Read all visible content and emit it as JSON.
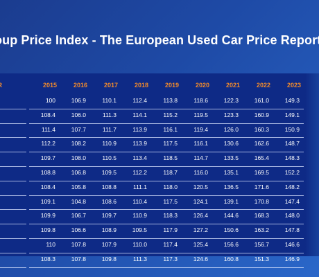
{
  "title": "oup Price Index - The European Used Car Price Report",
  "table": {
    "first_header_fragment": "AR",
    "years": [
      "2015",
      "2016",
      "2017",
      "2018",
      "2019",
      "2020",
      "2021",
      "2022",
      "2023"
    ],
    "rows": [
      [
        "100",
        "106.9",
        "110.1",
        "112.4",
        "113.8",
        "118.6",
        "122.3",
        "161.0",
        "149.3"
      ],
      [
        "108.4",
        "106.0",
        "111.3",
        "114.1",
        "115.2",
        "119.5",
        "123.3",
        "160.9",
        "149.1"
      ],
      [
        "111.4",
        "107.7",
        "111.7",
        "113.9",
        "116.1",
        "119.4",
        "126.0",
        "160.3",
        "150.9"
      ],
      [
        "112.2",
        "108.2",
        "110.9",
        "113.9",
        "117.5",
        "116.1",
        "130.6",
        "162.6",
        "148.7"
      ],
      [
        "109.7",
        "108.0",
        "110.5",
        "113.4",
        "118.5",
        "114.7",
        "133.5",
        "165.4",
        "148.3"
      ],
      [
        "108.8",
        "106.8",
        "109.5",
        "112.2",
        "118.7",
        "116.0",
        "135.1",
        "169.5",
        "152.2"
      ],
      [
        "108.4",
        "105.8",
        "108.8",
        "111.1",
        "118.0",
        "120.5",
        "136.5",
        "171.6",
        "148.2"
      ],
      [
        "109.1",
        "104.8",
        "108.6",
        "110.4",
        "117.5",
        "124.1",
        "139.1",
        "170.8",
        "147.4"
      ],
      [
        "109.9",
        "106.7",
        "109.7",
        "110.9",
        "118.3",
        "126.4",
        "144.6",
        "168.3",
        "148.0"
      ],
      [
        "109.8",
        "106.6",
        "108.9",
        "109.5",
        "117.9",
        "127.2",
        "150.6",
        "163.2",
        "147.8"
      ],
      [
        "110",
        "107.8",
        "107.9",
        "110.0",
        "117.4",
        "125.4",
        "156.6",
        "156.7",
        "146.6"
      ],
      [
        "108.3",
        "107.8",
        "109.8",
        "111.3",
        "117.3",
        "124.6",
        "160.8",
        "151.3",
        "146.9"
      ]
    ]
  }
}
